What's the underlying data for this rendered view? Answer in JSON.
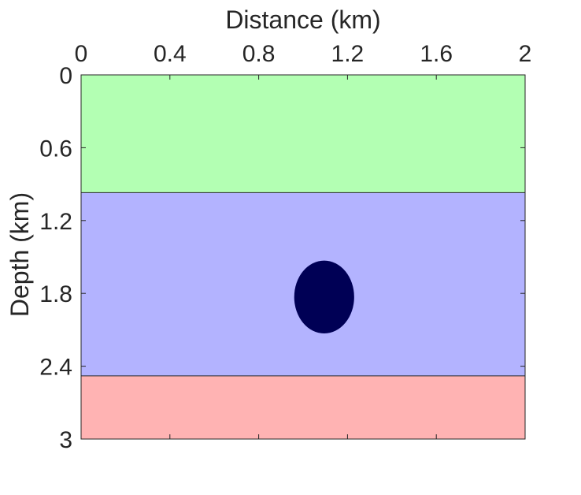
{
  "chart_data": {
    "type": "heatmap",
    "title": "",
    "xlabel": "Distance (km)",
    "ylabel": "Depth (km)",
    "xlim": [
      0,
      2
    ],
    "ylim": [
      0,
      3
    ],
    "x_axis_position": "top",
    "y_axis_direction": "reversed",
    "xticks": [
      0,
      0.4,
      0.8,
      1.2,
      1.6,
      2
    ],
    "xtick_labels": [
      "0",
      "0.4",
      "0.8",
      "1.2",
      "1.6",
      "2"
    ],
    "yticks": [
      0,
      0.6,
      1.2,
      1.8,
      2.4,
      3
    ],
    "ytick_labels": [
      "0",
      "0.6",
      "1.2",
      "1.8",
      "2.4",
      "3"
    ],
    "grid": false,
    "legend": "none",
    "layers": [
      {
        "top_km": 0.0,
        "bottom_km": 0.97,
        "color": "#b3ffb3"
      },
      {
        "top_km": 0.97,
        "bottom_km": 2.48,
        "color": "#b3b3ff"
      },
      {
        "top_km": 2.48,
        "bottom_km": 3.0,
        "color": "#ffb3b3"
      }
    ],
    "anomaly": {
      "shape": "ellipse",
      "center_x_km": 1.095,
      "center_depth_km": 1.83,
      "radius_x_km": 0.135,
      "radius_depth_km": 0.3,
      "color": "#000055"
    }
  }
}
